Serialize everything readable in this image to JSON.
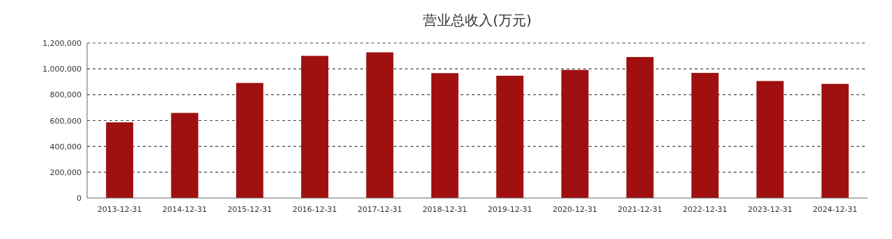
{
  "chart_data": {
    "type": "bar",
    "title": "营业总收入(万元)",
    "categories": [
      "2013-12-31",
      "2014-12-31",
      "2015-12-31",
      "2016-12-31",
      "2017-12-31",
      "2018-12-31",
      "2019-12-31",
      "2020-12-31",
      "2021-12-31",
      "2022-12-31",
      "2023-12-31",
      "2024-12-31"
    ],
    "values": [
      586000,
      659000,
      891000,
      1101000,
      1128000,
      967000,
      947000,
      992000,
      1092000,
      969000,
      906000,
      884000
    ],
    "color": "#a01010",
    "ylim": [
      0,
      1200000
    ],
    "yticks": [
      0,
      {
        "value": 200000,
        "label": "200,000"
      },
      {
        "value": 400000,
        "label": "400,000"
      },
      {
        "value": 600000,
        "label": "600,000"
      },
      {
        "value": 800000,
        "label": "800,000"
      },
      {
        "value": 1000000,
        "label": "1,000,000"
      },
      {
        "value": 1200000,
        "label": "1,200,000"
      }
    ],
    "grid": "y"
  }
}
